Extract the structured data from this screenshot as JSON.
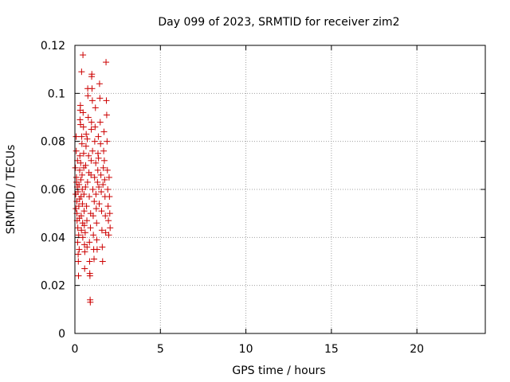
{
  "chart_data": {
    "type": "scatter",
    "title": "Day 099 of 2023, SRMTID for receiver zim2",
    "xlabel": "GPS time / hours",
    "ylabel": "SRMTID / TECUs",
    "xlim": [
      0,
      24
    ],
    "ylim": [
      0,
      0.12
    ],
    "xticks": [
      0,
      5,
      10,
      15,
      20
    ],
    "yticks": [
      0,
      0.02,
      0.04,
      0.06,
      0.08,
      0.1,
      0.12
    ],
    "xtick_labels": [
      "0",
      "5",
      "10",
      "15",
      "20"
    ],
    "ytick_labels": [
      "0",
      "0.02",
      "0.04",
      "0.06",
      "0.08",
      "0.1",
      "0.12"
    ],
    "grid": true,
    "marker": "+",
    "marker_color": "#cc0000",
    "series": [
      {
        "points": [
          [
            0.03,
            0.069
          ],
          [
            0.05,
            0.058
          ],
          [
            0.06,
            0.052
          ],
          [
            0.07,
            0.082
          ],
          [
            0.08,
            0.076
          ],
          [
            0.09,
            0.065
          ],
          [
            0.1,
            0.063
          ],
          [
            0.11,
            0.055
          ],
          [
            0.12,
            0.05
          ],
          [
            0.13,
            0.047
          ],
          [
            0.14,
            0.061
          ],
          [
            0.15,
            0.072
          ],
          [
            0.16,
            0.038
          ],
          [
            0.17,
            0.044
          ],
          [
            0.18,
            0.059
          ],
          [
            0.19,
            0.033
          ],
          [
            0.2,
            0.03
          ],
          [
            0.21,
            0.024
          ],
          [
            0.22,
            0.041
          ],
          [
            0.23,
            0.053
          ],
          [
            0.24,
            0.062
          ],
          [
            0.25,
            0.035
          ],
          [
            0.26,
            0.048
          ],
          [
            0.27,
            0.056
          ],
          [
            0.28,
            0.068
          ],
          [
            0.29,
            0.074
          ],
          [
            0.3,
            0.089
          ],
          [
            0.31,
            0.093
          ],
          [
            0.32,
            0.095
          ],
          [
            0.33,
            0.087
          ],
          [
            0.34,
            0.071
          ],
          [
            0.35,
            0.064
          ],
          [
            0.36,
            0.057
          ],
          [
            0.37,
            0.049
          ],
          [
            0.38,
            0.043
          ],
          [
            0.39,
            0.109
          ],
          [
            0.4,
            0.082
          ],
          [
            0.41,
            0.079
          ],
          [
            0.42,
            0.066
          ],
          [
            0.43,
            0.06
          ],
          [
            0.44,
            0.054
          ],
          [
            0.45,
            0.046
          ],
          [
            0.46,
            0.04
          ],
          [
            0.47,
            0.116
          ],
          [
            0.48,
            0.092
          ],
          [
            0.5,
            0.086
          ],
          [
            0.51,
            0.075
          ],
          [
            0.52,
            0.069
          ],
          [
            0.53,
            0.058
          ],
          [
            0.54,
            0.051
          ],
          [
            0.55,
            0.045
          ],
          [
            0.56,
            0.037
          ],
          [
            0.57,
            0.027
          ],
          [
            0.58,
            0.034
          ],
          [
            0.6,
            0.042
          ],
          [
            0.62,
            0.061
          ],
          [
            0.63,
            0.07
          ],
          [
            0.65,
            0.078
          ],
          [
            0.66,
            0.083
          ],
          [
            0.68,
            0.053
          ],
          [
            0.7,
            0.047
          ],
          [
            0.71,
            0.036
          ],
          [
            0.72,
            0.081
          ],
          [
            0.74,
            0.063
          ],
          [
            0.75,
            0.102
          ],
          [
            0.76,
            0.099
          ],
          [
            0.78,
            0.09
          ],
          [
            0.8,
            0.074
          ],
          [
            0.82,
            0.067
          ],
          [
            0.84,
            0.057
          ],
          [
            0.85,
            0.038
          ],
          [
            0.86,
            0.03
          ],
          [
            0.87,
            0.025
          ],
          [
            0.88,
            0.024
          ],
          [
            0.89,
            0.014
          ],
          [
            0.9,
            0.013
          ],
          [
            0.91,
            0.044
          ],
          [
            0.92,
            0.05
          ],
          [
            0.94,
            0.066
          ],
          [
            0.95,
            0.072
          ],
          [
            0.96,
            0.085
          ],
          [
            0.97,
            0.088
          ],
          [
            0.98,
            0.107
          ],
          [
            0.99,
            0.108
          ],
          [
            1.0,
            0.102
          ],
          [
            1.02,
            0.097
          ],
          [
            1.03,
            0.076
          ],
          [
            1.05,
            0.06
          ],
          [
            1.07,
            0.049
          ],
          [
            1.08,
            0.041
          ],
          [
            1.1,
            0.035
          ],
          [
            1.12,
            0.031
          ],
          [
            1.13,
            0.055
          ],
          [
            1.15,
            0.065
          ],
          [
            1.16,
            0.08
          ],
          [
            1.18,
            0.086
          ],
          [
            1.2,
            0.094
          ],
          [
            1.22,
            0.071
          ],
          [
            1.23,
            0.058
          ],
          [
            1.25,
            0.052
          ],
          [
            1.27,
            0.046
          ],
          [
            1.28,
            0.039
          ],
          [
            1.3,
            0.035
          ],
          [
            1.32,
            0.063
          ],
          [
            1.34,
            0.068
          ],
          [
            1.35,
            0.075
          ],
          [
            1.37,
            0.082
          ],
          [
            1.38,
            0.073
          ],
          [
            1.4,
            0.061
          ],
          [
            1.42,
            0.054
          ],
          [
            1.44,
            0.104
          ],
          [
            1.46,
            0.098
          ],
          [
            1.48,
            0.088
          ],
          [
            1.5,
            0.079
          ],
          [
            1.52,
            0.066
          ],
          [
            1.54,
            0.059
          ],
          [
            1.56,
            0.051
          ],
          [
            1.58,
            0.043
          ],
          [
            1.6,
            0.036
          ],
          [
            1.62,
            0.03
          ],
          [
            1.64,
            0.062
          ],
          [
            1.66,
            0.069
          ],
          [
            1.68,
            0.076
          ],
          [
            1.7,
            0.084
          ],
          [
            1.72,
            0.072
          ],
          [
            1.74,
            0.064
          ],
          [
            1.76,
            0.057
          ],
          [
            1.78,
            0.049
          ],
          [
            1.8,
            0.042
          ],
          [
            1.82,
            0.113
          ],
          [
            1.84,
            0.097
          ],
          [
            1.86,
            0.091
          ],
          [
            1.88,
            0.08
          ],
          [
            1.9,
            0.068
          ],
          [
            1.92,
            0.06
          ],
          [
            1.94,
            0.053
          ],
          [
            1.96,
            0.047
          ],
          [
            1.98,
            0.041
          ],
          [
            2.0,
            0.065
          ],
          [
            2.02,
            0.057
          ],
          [
            2.04,
            0.05
          ],
          [
            2.06,
            0.044
          ]
        ]
      }
    ]
  }
}
